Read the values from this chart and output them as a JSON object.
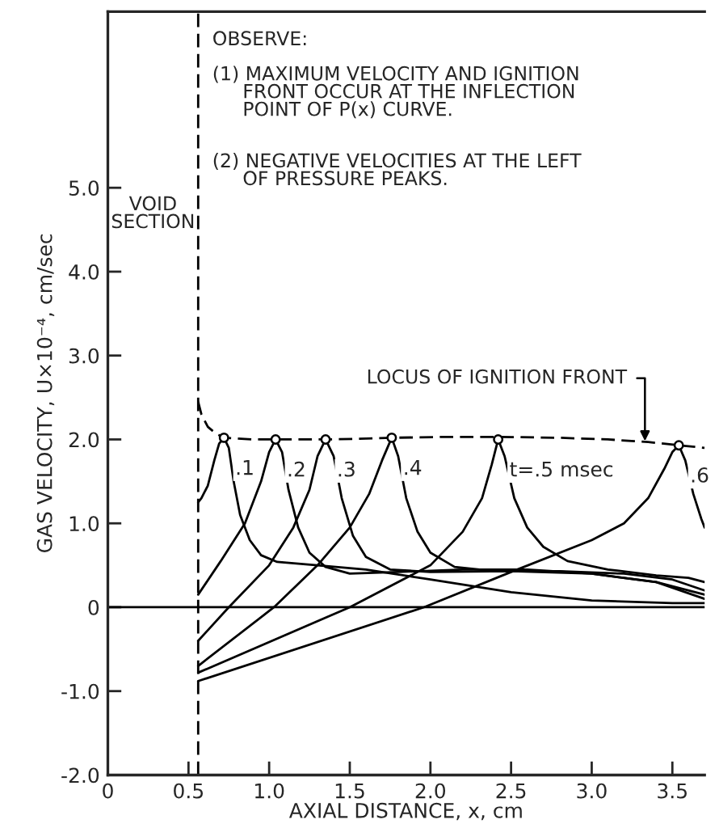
{
  "chart_data": {
    "type": "line",
    "xlabel": "AXIAL DISTANCE, x, cm",
    "ylabel": "GAS VELOCITY, U×10⁻⁴, cm/sec",
    "xlim": [
      0,
      3.7
    ],
    "ylim": [
      -2.0,
      7.1
    ],
    "xticks": [
      0,
      {
        "value": 0.5,
        "label": "0.5"
      },
      {
        "value": 1.0,
        "label": "1.0"
      },
      {
        "value": 1.5,
        "label": "1.5"
      },
      {
        "value": 2.0,
        "label": "2.0"
      },
      {
        "value": 2.5,
        "label": "2.5"
      },
      {
        "value": 3.0,
        "label": "3.0"
      },
      {
        "value": 3.5,
        "label": "3.5"
      }
    ],
    "yticks": [
      {
        "value": -2.0,
        "label": "-2.0"
      },
      {
        "value": -1.0,
        "label": "-1.0"
      },
      0,
      {
        "value": 1.0,
        "label": "1.0"
      },
      {
        "value": 2.0,
        "label": "2.0"
      },
      {
        "value": 3.0,
        "label": "3.0"
      },
      {
        "value": 4.0,
        "label": "4.0"
      },
      {
        "value": 5.0,
        "label": "5.0"
      }
    ],
    "grid": false,
    "legend": false,
    "marker": "none",
    "series": [
      {
        "name": ".1",
        "color": "#000000",
        "x": [
          0.56,
          0.58,
          0.62,
          0.66,
          0.69,
          0.72,
          0.75,
          0.78,
          0.82,
          0.88,
          0.95,
          1.05,
          1.3,
          1.6,
          2.0,
          2.5,
          3.0,
          3.5,
          3.7
        ],
        "values": [
          1.25,
          1.3,
          1.45,
          1.75,
          1.95,
          2.02,
          1.9,
          1.5,
          1.1,
          0.8,
          0.62,
          0.54,
          0.5,
          0.45,
          0.33,
          0.18,
          0.08,
          0.05,
          0.05
        ]
      },
      {
        "name": ".2",
        "color": "#000000",
        "x": [
          0.56,
          0.7,
          0.85,
          0.95,
          1.0,
          1.04,
          1.08,
          1.12,
          1.18,
          1.25,
          1.35,
          1.5,
          1.8,
          2.2,
          2.6,
          3.0,
          3.4,
          3.7
        ],
        "values": [
          0.15,
          0.55,
          1.0,
          1.5,
          1.85,
          2.0,
          1.85,
          1.4,
          0.95,
          0.65,
          0.48,
          0.4,
          0.42,
          0.45,
          0.45,
          0.4,
          0.3,
          0.1
        ]
      },
      {
        "name": ".3",
        "color": "#000000",
        "x": [
          0.56,
          0.75,
          1.0,
          1.15,
          1.25,
          1.3,
          1.35,
          1.4,
          1.45,
          1.52,
          1.6,
          1.75,
          2.0,
          2.5,
          3.0,
          3.4,
          3.7
        ],
        "values": [
          -0.4,
          0.0,
          0.5,
          0.95,
          1.4,
          1.8,
          2.0,
          1.8,
          1.3,
          0.85,
          0.6,
          0.45,
          0.42,
          0.43,
          0.4,
          0.3,
          0.15
        ]
      },
      {
        "name": ".4",
        "color": "#000000",
        "x": [
          0.56,
          1.03,
          1.3,
          1.5,
          1.62,
          1.7,
          1.76,
          1.8,
          1.85,
          1.92,
          2.0,
          2.15,
          2.4,
          2.8,
          3.2,
          3.5,
          3.7
        ],
        "values": [
          -0.7,
          0.0,
          0.5,
          0.95,
          1.35,
          1.75,
          2.02,
          1.8,
          1.3,
          0.9,
          0.65,
          0.48,
          0.43,
          0.43,
          0.4,
          0.33,
          0.2
        ]
      },
      {
        "name": "t=.5 msec",
        "color": "#000000",
        "x": [
          0.56,
          1.5,
          2.0,
          2.2,
          2.32,
          2.38,
          2.42,
          2.46,
          2.52,
          2.6,
          2.7,
          2.85,
          3.1,
          3.4,
          3.6,
          3.7
        ],
        "values": [
          -0.78,
          0.0,
          0.5,
          0.9,
          1.3,
          1.7,
          2.0,
          1.8,
          1.3,
          0.95,
          0.72,
          0.55,
          0.45,
          0.38,
          0.35,
          0.3
        ]
      },
      {
        "name": ".6",
        "color": "#000000",
        "x": [
          0.56,
          1.96,
          2.5,
          3.0,
          3.2,
          3.35,
          3.45,
          3.5,
          3.54,
          3.58,
          3.63,
          3.68,
          3.7
        ],
        "values": [
          -0.88,
          0.0,
          0.42,
          0.8,
          1.0,
          1.3,
          1.65,
          1.85,
          1.93,
          1.75,
          1.35,
          1.05,
          0.95
        ]
      },
      {
        "color": "#000000",
        "line_style": "dashed",
        "x": [
          0.56,
          0.58,
          0.62,
          0.67,
          0.72,
          0.9,
          1.04,
          1.2,
          1.35,
          1.6,
          1.76,
          2.1,
          2.42,
          2.8,
          3.1,
          3.35,
          3.54,
          3.7
        ],
        "values": [
          2.45,
          2.3,
          2.15,
          2.07,
          2.02,
          2.0,
          2.0,
          2.0,
          2.0,
          2.01,
          2.02,
          2.03,
          2.03,
          2.02,
          2.0,
          1.97,
          1.93,
          1.9
        ]
      },
      {
        "type": "scatter",
        "marker": "circle",
        "color": "#000000",
        "x": [
          0.72,
          1.04,
          1.35,
          1.76,
          2.42,
          3.54
        ],
        "values": [
          2.02,
          2.0,
          2.0,
          2.02,
          2.0,
          1.93
        ]
      }
    ],
    "ref_lines": [
      {
        "axis": "y",
        "value": 0,
        "color": "#000000"
      },
      {
        "axis": "x",
        "value": 0.56,
        "label": "VOID\nSECTION",
        "color": "#000000",
        "line_style": "dashed"
      }
    ],
    "annotations": [
      "OBSERVE:",
      "(1) MAXIMUM VELOCITY AND IGNITION\n     FRONT OCCUR AT THE INFLECTION\n     POINT OF P(x) CURVE.",
      "(2) NEGATIVE VELOCITIES AT THE LEFT\n     OF PRESSURE PEAKS.",
      {
        "text": "LOCUS OF IGNITION FRONT",
        "x": 3.33,
        "y": 1.98
      }
    ]
  }
}
